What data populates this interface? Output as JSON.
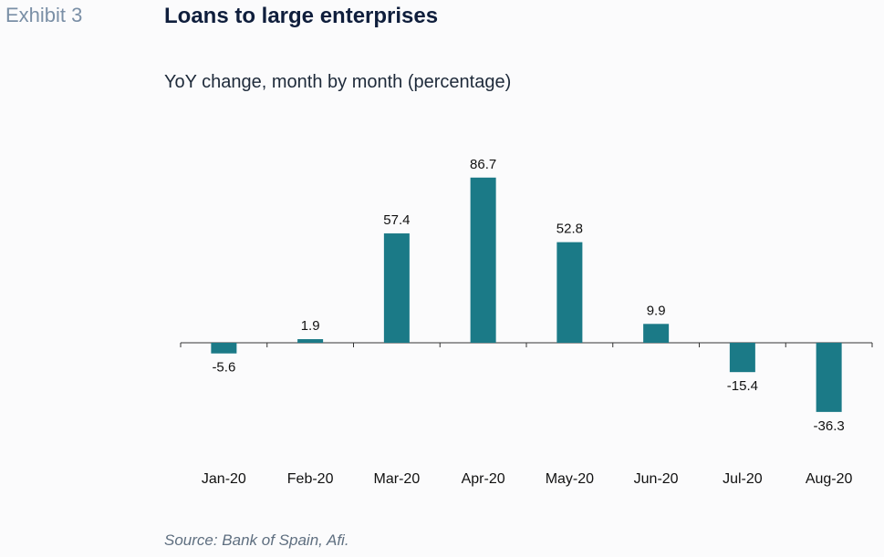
{
  "header": {
    "exhibit": "Exhibit 3",
    "title": "Loans to large enterprises",
    "subtitle": "YoY change, month by month (percentage)"
  },
  "footer": {
    "source": "Source: Bank of Spain, Afi."
  },
  "colors": {
    "bar": "#1b7a87",
    "axis": "#333333"
  },
  "chart_data": {
    "type": "bar",
    "title": "Loans to large enterprises",
    "subtitle": "YoY change, month by month (percentage)",
    "categories": [
      "Jan-20",
      "Feb-20",
      "Mar-20",
      "Apr-20",
      "May-20",
      "Jun-20",
      "Jul-20",
      "Aug-20"
    ],
    "values": [
      -5.6,
      1.9,
      57.4,
      86.7,
      52.8,
      9.9,
      -15.4,
      -36.3
    ],
    "value_labels": [
      "-5.6",
      "1.9",
      "57.4",
      "86.7",
      "52.8",
      "9.9",
      "-15.4",
      "-36.3"
    ],
    "xlabel": "",
    "ylabel": "",
    "ylim": [
      -40,
      90
    ],
    "grid": false,
    "legend": "none",
    "data_labels": true
  }
}
